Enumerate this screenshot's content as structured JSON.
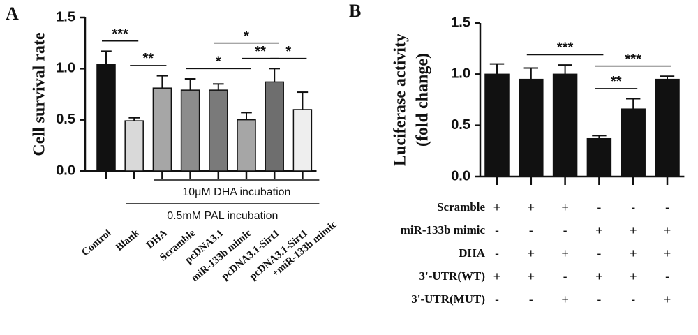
{
  "chart_data": [
    {
      "type": "bar",
      "panel": "A",
      "ylabel": [
        "Cell survival rate"
      ],
      "categories": [
        "Control",
        "Blank",
        "DHA",
        "Scramble",
        "pcDNA3.1",
        "miR-133b mimic",
        "pcDNA3.1-Sirt1",
        "pcDNA3.1-Sirt1\n+miR-133b mimic"
      ],
      "values": [
        1.04,
        0.49,
        0.81,
        0.79,
        0.79,
        0.5,
        0.87,
        0.6
      ],
      "errors": [
        0.13,
        0.03,
        0.12,
        0.11,
        0.06,
        0.07,
        0.13,
        0.17
      ],
      "colors": [
        "#111111",
        "#d9d9d9",
        "#a6a6a6",
        "#8c8c8c",
        "#7a7a7a",
        "#a6a6a6",
        "#6e6e6e",
        "#eeeeee"
      ],
      "ylim": [
        0,
        1.5
      ],
      "yticks": [
        {
          "value": 0,
          "label": "0.0"
        },
        0.5,
        {
          "value": 1,
          "label": "1.0"
        },
        1.5
      ],
      "significance": [
        {
          "from": 0,
          "to": 1,
          "label": "***"
        },
        {
          "from": 1,
          "to": 2,
          "label": "**"
        },
        {
          "from": 3,
          "to": 5,
          "label": "*"
        },
        {
          "from": 5,
          "to": 6,
          "label": "**"
        },
        {
          "from": 4,
          "to": 6,
          "label": "*"
        },
        {
          "from": 6,
          "to": 7,
          "label": "*"
        }
      ],
      "groups": [
        {
          "from": 2,
          "to": 7,
          "label": "10μM DHA incubation"
        },
        {
          "from": 1,
          "to": 7,
          "label": "0.5mM PAL incubation"
        }
      ]
    },
    {
      "type": "bar",
      "panel": "B",
      "ylabel": [
        "Luciferase activity",
        "(fold change)"
      ],
      "values": [
        1.0,
        0.95,
        1.0,
        0.37,
        0.66,
        0.95
      ],
      "errors": [
        0.1,
        0.11,
        0.09,
        0.03,
        0.1,
        0.03
      ],
      "colors": [
        "#111111",
        "#111111",
        "#111111",
        "#111111",
        "#111111",
        "#111111"
      ],
      "ylim": [
        0,
        1.5
      ],
      "yticks": [
        {
          "value": 0,
          "label": "0.0"
        },
        0.5,
        {
          "value": 1,
          "label": "1.0"
        },
        1.5
      ],
      "significance": [
        {
          "from": 1,
          "to": 3,
          "label": "***"
        },
        {
          "from": 3,
          "to": 4,
          "label": "**"
        },
        {
          "from": 3,
          "to": 5,
          "label": "***"
        }
      ],
      "conditions": [
        {
          "label": "Scramble",
          "values": [
            "+",
            "+",
            "+",
            "-",
            "-",
            "-"
          ]
        },
        {
          "label": "miR-133b mimic",
          "values": [
            "-",
            "-",
            "-",
            "+",
            "+",
            "+"
          ]
        },
        {
          "label": "DHA",
          "values": [
            "-",
            "+",
            "+",
            "-",
            "+",
            "+"
          ]
        },
        {
          "label": "3'-UTR(WT)",
          "values": [
            "+",
            "+",
            "-",
            "+",
            "+",
            "-"
          ]
        },
        {
          "label": "3'-UTR(MUT)",
          "values": [
            "-",
            "-",
            "+",
            "-",
            "-",
            "+"
          ]
        }
      ]
    }
  ]
}
